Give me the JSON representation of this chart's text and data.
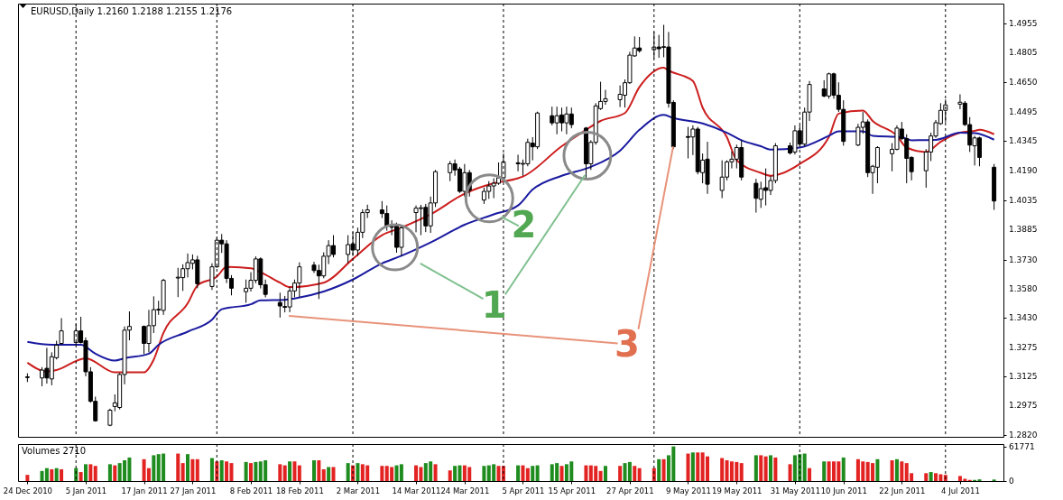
{
  "chart_data": [
    {
      "type": "candlestick",
      "title": "EURUSD,Daily  1.2160 1.2188 1.2155 1.2176",
      "tick_labels": "y",
      "x": [
        "2010-12-24",
        "2010-12-27",
        "2010-12-28",
        "2010-12-29",
        "2010-12-30",
        "2010-12-31",
        "2011-01-03",
        "2011-01-04",
        "2011-01-05",
        "2011-01-06",
        "2011-01-07",
        "2011-01-10",
        "2011-01-11",
        "2011-01-12",
        "2011-01-13",
        "2011-01-14",
        "2011-01-17",
        "2011-01-18",
        "2011-01-19",
        "2011-01-20",
        "2011-01-21",
        "2011-01-24",
        "2011-01-25",
        "2011-01-26",
        "2011-01-27",
        "2011-01-28",
        "2011-01-31",
        "2011-02-01",
        "2011-02-02",
        "2011-02-03",
        "2011-02-04",
        "2011-02-07",
        "2011-02-08",
        "2011-02-09",
        "2011-02-10",
        "2011-02-11",
        "2011-02-14",
        "2011-02-15",
        "2011-02-16",
        "2011-02-17",
        "2011-02-18",
        "2011-02-21",
        "2011-02-22",
        "2011-02-23",
        "2011-02-24",
        "2011-02-25",
        "2011-02-28",
        "2011-03-01",
        "2011-03-02",
        "2011-03-03",
        "2011-03-04",
        "2011-03-07",
        "2011-03-08",
        "2011-03-09",
        "2011-03-10",
        "2011-03-11",
        "2011-03-14",
        "2011-03-15",
        "2011-03-16",
        "2011-03-17",
        "2011-03-18",
        "2011-03-21",
        "2011-03-22",
        "2011-03-23",
        "2011-03-24",
        "2011-03-25",
        "2011-03-28",
        "2011-03-29",
        "2011-03-30",
        "2011-03-31",
        "2011-04-01",
        "2011-04-04",
        "2011-04-05",
        "2011-04-06",
        "2011-04-07",
        "2011-04-08",
        "2011-04-11",
        "2011-04-12",
        "2011-04-13",
        "2011-04-14",
        "2011-04-15",
        "2011-04-18",
        "2011-04-19",
        "2011-04-20",
        "2011-04-21",
        "2011-04-22",
        "2011-04-25",
        "2011-04-26",
        "2011-04-27",
        "2011-04-28",
        "2011-04-29",
        "2011-05-02",
        "2011-05-03",
        "2011-05-04",
        "2011-05-05",
        "2011-05-06",
        "2011-05-09",
        "2011-05-10",
        "2011-05-11",
        "2011-05-12",
        "2011-05-13",
        "2011-05-16",
        "2011-05-17",
        "2011-05-18",
        "2011-05-19",
        "2011-05-20",
        "2011-05-23",
        "2011-05-24",
        "2011-05-25",
        "2011-05-26",
        "2011-05-27",
        "2011-05-30",
        "2011-05-31",
        "2011-06-01",
        "2011-06-02",
        "2011-06-03",
        "2011-06-06",
        "2011-06-07",
        "2011-06-08",
        "2011-06-09",
        "2011-06-10",
        "2011-06-13",
        "2011-06-14",
        "2011-06-15",
        "2011-06-16",
        "2011-06-17",
        "2011-06-20",
        "2011-06-21",
        "2011-06-22",
        "2011-06-23",
        "2011-06-24",
        "2011-06-27",
        "2011-06-28",
        "2011-06-29",
        "2011-06-30",
        "2011-07-01",
        "2011-07-04",
        "2011-07-05",
        "2011-07-06",
        "2011-07-07",
        "2011-07-08",
        "2011-07-11"
      ],
      "ohlc": [
        [
          1.3118,
          1.314,
          1.3095,
          1.3122
        ],
        [
          1.3116,
          1.3172,
          1.3073,
          1.3157
        ],
        [
          1.3166,
          1.3272,
          1.3087,
          1.3116
        ],
        [
          1.3111,
          1.3249,
          1.3078,
          1.3226
        ],
        [
          1.3221,
          1.3309,
          1.3212,
          1.3286
        ],
        [
          1.3295,
          1.3426,
          1.3288,
          1.336
        ],
        [
          1.33,
          1.3395,
          1.3288,
          1.336
        ],
        [
          1.336,
          1.3433,
          1.3295,
          1.33
        ],
        [
          1.3309,
          1.3326,
          1.3125,
          1.3148
        ],
        [
          1.3148,
          1.3172,
          1.2988,
          1.2995
        ],
        [
          1.2995,
          1.3019,
          1.289,
          1.2894
        ],
        [
          1.2871,
          1.2957,
          1.2866,
          1.2949
        ],
        [
          1.2968,
          1.3031,
          1.2943,
          1.2987
        ],
        [
          1.2963,
          1.3142,
          1.2953,
          1.3134
        ],
        [
          1.3134,
          1.3383,
          1.3083,
          1.3364
        ],
        [
          1.3364,
          1.3461,
          1.3311,
          1.3383
        ],
        [
          1.3383,
          1.3388,
          1.324,
          1.3295
        ],
        [
          1.3295,
          1.3469,
          1.3249,
          1.3387
        ],
        [
          1.3387,
          1.3539,
          1.3349,
          1.347
        ],
        [
          1.3468,
          1.3516,
          1.3443,
          1.3472
        ],
        [
          1.3466,
          1.363,
          1.3443,
          1.3622
        ],
        [
          1.3634,
          1.3687,
          1.3535,
          1.3638
        ],
        [
          1.3636,
          1.3705,
          1.3567,
          1.3682
        ],
        [
          1.3682,
          1.3761,
          1.3637,
          1.3714
        ],
        [
          1.371,
          1.3756,
          1.3679,
          1.3728
        ],
        [
          1.3728,
          1.3749,
          1.3581,
          1.3604
        ],
        [
          1.359,
          1.371,
          1.3572,
          1.3692
        ],
        [
          1.3692,
          1.3844,
          1.3687,
          1.383
        ],
        [
          1.383,
          1.3862,
          1.3764,
          1.3811
        ],
        [
          1.3811,
          1.383,
          1.3608,
          1.3632
        ],
        [
          1.3632,
          1.3649,
          1.3544,
          1.3581
        ],
        [
          1.3563,
          1.3626,
          1.3506,
          1.3581
        ],
        [
          1.3581,
          1.3664,
          1.3564,
          1.3622
        ],
        [
          1.3622,
          1.3746,
          1.3607,
          1.3733
        ],
        [
          1.3733,
          1.3741,
          1.358,
          1.3599
        ],
        [
          1.3599,
          1.3626,
          1.3534,
          1.3549
        ],
        [
          1.3507,
          1.3558,
          1.3429,
          1.3489
        ],
        [
          1.3486,
          1.3541,
          1.3456,
          1.3482
        ],
        [
          1.3484,
          1.3587,
          1.3457,
          1.3567
        ],
        [
          1.3567,
          1.3626,
          1.3534,
          1.3608
        ],
        [
          1.3608,
          1.3715,
          1.3535,
          1.3692
        ],
        [
          1.3701,
          1.3718,
          1.366,
          1.3673
        ],
        [
          1.3673,
          1.3703,
          1.3525,
          1.3645
        ],
        [
          1.3645,
          1.3767,
          1.3633,
          1.3747
        ],
        [
          1.3747,
          1.383,
          1.3706,
          1.3802
        ],
        [
          1.3802,
          1.3856,
          1.3741,
          1.3756
        ],
        [
          1.3756,
          1.3856,
          1.371,
          1.3807
        ],
        [
          1.3811,
          1.3872,
          1.3749,
          1.3779
        ],
        [
          1.3779,
          1.3895,
          1.3749,
          1.3871
        ],
        [
          1.3871,
          1.399,
          1.3841,
          1.3973
        ],
        [
          1.3973,
          1.4014,
          1.3945,
          1.3987
        ],
        [
          1.3987,
          1.4033,
          1.3945,
          1.3968
        ],
        [
          1.3968,
          1.401,
          1.3879,
          1.3904
        ],
        [
          1.3901,
          1.3933,
          1.3856,
          1.3897
        ],
        [
          1.3904,
          1.3921,
          1.3765,
          1.3793
        ],
        [
          1.3793,
          1.391,
          1.3749,
          1.3894
        ],
        [
          1.3973,
          1.401,
          1.3871,
          1.3996
        ],
        [
          1.3994,
          1.4013,
          1.3856,
          1.3998
        ],
        [
          1.4,
          1.4018,
          1.3872,
          1.3904
        ],
        [
          1.3904,
          1.4056,
          1.3868,
          1.4023
        ],
        [
          1.4023,
          1.4194,
          1.4002,
          1.4185
        ],
        [
          1.418,
          1.424,
          1.4136,
          1.4226
        ],
        [
          1.4226,
          1.4248,
          1.4164,
          1.4194
        ],
        [
          1.4199,
          1.421,
          1.4075,
          1.4083
        ],
        [
          1.4083,
          1.4225,
          1.4056,
          1.418
        ],
        [
          1.418,
          1.4194,
          1.4056,
          1.4088
        ],
        [
          1.4038,
          1.4102,
          1.4018,
          1.4083
        ],
        [
          1.4083,
          1.4136,
          1.4044,
          1.4111
        ],
        [
          1.4111,
          1.4151,
          1.4048,
          1.4125
        ],
        [
          1.4125,
          1.4233,
          1.4117,
          1.4153
        ],
        [
          1.4153,
          1.4279,
          1.414,
          1.4236
        ],
        [
          1.4231,
          1.4273,
          1.4187,
          1.4226
        ],
        [
          1.4224,
          1.4248,
          1.4164,
          1.4228
        ],
        [
          1.4226,
          1.4356,
          1.4213,
          1.4337
        ],
        [
          1.4333,
          1.4364,
          1.4244,
          1.4314
        ],
        [
          1.4314,
          1.4496,
          1.4302,
          1.4489
        ],
        [
          1.4475,
          1.4522,
          1.4425,
          1.4438
        ],
        [
          1.4438,
          1.4522,
          1.4379,
          1.4475
        ],
        [
          1.4479,
          1.4517,
          1.4394,
          1.4438
        ],
        [
          1.4438,
          1.4522,
          1.4379,
          1.4484
        ],
        [
          1.4484,
          1.4517,
          1.441,
          1.4429
        ],
        [
          1.4411,
          1.4417,
          1.4153,
          1.4226
        ],
        [
          1.4226,
          1.4348,
          1.4194,
          1.4337
        ],
        [
          1.4337,
          1.454,
          1.4325,
          1.4526
        ],
        [
          1.4512,
          1.4651,
          1.4505,
          1.4549
        ],
        [
          1.4549,
          1.4609,
          1.4532,
          1.4563
        ],
        [
          1.4558,
          1.4632,
          1.452,
          1.4586
        ],
        [
          1.4581,
          1.4663,
          1.4517,
          1.4646
        ],
        [
          1.4646,
          1.4806,
          1.464,
          1.4789
        ],
        [
          1.4785,
          1.4886,
          1.478,
          1.4826
        ],
        [
          1.4826,
          1.4883,
          1.4802,
          1.4812
        ],
        [
          1.4817,
          1.4909,
          1.4771,
          1.4831
        ],
        [
          1.4831,
          1.4894,
          1.4775,
          1.4822
        ],
        [
          1.4829,
          1.4946,
          1.4778,
          1.4833
        ],
        [
          1.4831,
          1.4909,
          1.4517,
          1.454
        ],
        [
          1.4544,
          1.4555,
          1.4302,
          1.4314
        ],
        [
          1.4367,
          1.4417,
          1.4254,
          1.4363
        ],
        [
          1.4365,
          1.4425,
          1.4271,
          1.4406
        ],
        [
          1.4406,
          1.4417,
          1.4171,
          1.4185
        ],
        [
          1.418,
          1.4279,
          1.4125,
          1.4245
        ],
        [
          1.425,
          1.434,
          1.407,
          1.412
        ],
        [
          1.4088,
          1.4244,
          1.4048,
          1.4157
        ],
        [
          1.4157,
          1.4244,
          1.414,
          1.4236
        ],
        [
          1.4236,
          1.429,
          1.4202,
          1.425
        ],
        [
          1.425,
          1.4325,
          1.4202,
          1.431
        ],
        [
          1.431,
          1.4348,
          1.414,
          1.4157
        ],
        [
          1.4125,
          1.4148,
          1.3973,
          1.4047
        ],
        [
          1.4042,
          1.4133,
          1.3997,
          1.4097
        ],
        [
          1.4102,
          1.4202,
          1.401,
          1.4088
        ],
        [
          1.4088,
          1.4164,
          1.4064,
          1.4139
        ],
        [
          1.4139,
          1.4333,
          1.4125,
          1.4319
        ],
        [
          1.4319,
          1.4336,
          1.4274,
          1.4282
        ],
        [
          1.4287,
          1.4425,
          1.4274,
          1.4397
        ],
        [
          1.4397,
          1.4425,
          1.432,
          1.4328
        ],
        [
          1.4328,
          1.4517,
          1.4317,
          1.4494
        ],
        [
          1.4494,
          1.4655,
          1.4448,
          1.4637
        ],
        [
          1.4614,
          1.4659,
          1.4571,
          1.4577
        ],
        [
          1.4577,
          1.4698,
          1.4563,
          1.4692
        ],
        [
          1.4692,
          1.4698,
          1.4563,
          1.4581
        ],
        [
          1.4581,
          1.4648,
          1.4495,
          1.4508
        ],
        [
          1.4508,
          1.4555,
          1.432,
          1.4342
        ],
        [
          1.4323,
          1.4433,
          1.4317,
          1.4415
        ],
        [
          1.4415,
          1.4494,
          1.4382,
          1.4443
        ],
        [
          1.4443,
          1.4456,
          1.4157,
          1.418
        ],
        [
          1.418,
          1.422,
          1.407,
          1.4213
        ],
        [
          1.4208,
          1.4317,
          1.4125,
          1.431
        ],
        [
          1.4278,
          1.4333,
          1.4187,
          1.4301
        ],
        [
          1.4301,
          1.4425,
          1.4296,
          1.4411
        ],
        [
          1.4406,
          1.4443,
          1.435,
          1.4356
        ],
        [
          1.4356,
          1.4379,
          1.4125,
          1.4254
        ],
        [
          1.4259,
          1.4264,
          1.414,
          1.4185
        ],
        [
          1.419,
          1.4302,
          1.4102,
          1.4287
        ],
        [
          1.4287,
          1.4387,
          1.424,
          1.437
        ],
        [
          1.437,
          1.4453,
          1.436,
          1.4439
        ],
        [
          1.4434,
          1.454,
          1.4428,
          1.4503
        ],
        [
          1.4503,
          1.4559,
          1.444,
          1.4531
        ],
        [
          1.4535,
          1.4586,
          1.4509,
          1.4545
        ],
        [
          1.454,
          1.4551,
          1.4422,
          1.4429
        ],
        [
          1.4429,
          1.4468,
          1.4287,
          1.4323
        ],
        [
          1.4319,
          1.4371,
          1.4217,
          1.436
        ],
        [
          1.436,
          1.4366,
          1.4213,
          1.4259
        ],
        [
          1.4208,
          1.4225,
          1.3987,
          1.4033
        ]
      ],
      "series": [
        {
          "type": "line",
          "color": "#cc1e1e",
          "x": [
            "2010-12-24",
            "2010-12-28",
            "2010-12-30",
            "2011-01-05",
            "2011-01-11",
            "2011-01-17",
            "2011-01-19",
            "2011-01-21",
            "2011-01-26",
            "2011-01-28",
            "2011-02-01",
            "2011-02-03",
            "2011-02-08",
            "2011-02-10",
            "2011-02-14",
            "2011-02-16",
            "2011-02-23",
            "2011-03-01",
            "2011-03-07",
            "2011-03-11",
            "2011-03-17",
            "2011-03-24",
            "2011-03-30",
            "2011-04-04",
            "2011-04-05",
            "2011-04-13",
            "2011-04-18",
            "2011-04-21",
            "2011-04-26",
            "2011-04-29",
            "2011-05-04",
            "2011-05-05",
            "2011-05-10",
            "2011-05-12",
            "2011-05-17",
            "2011-05-19",
            "2011-05-24",
            "2011-05-26",
            "2011-06-01",
            "2011-06-07",
            "2011-06-09",
            "2011-06-14",
            "2011-06-16",
            "2011-06-21",
            "2011-06-23",
            "2011-06-27",
            "2011-06-30",
            "2011-07-04",
            "2011-07-07",
            "2011-07-08",
            "2011-07-11"
          ],
          "values": [
            1.3195,
            1.3149,
            1.3157,
            1.3218,
            1.3145,
            1.3145,
            1.3211,
            1.3349,
            1.3503,
            1.3595,
            1.3641,
            1.3691,
            1.3684,
            1.3664,
            1.361,
            1.3587,
            1.361,
            1.3733,
            1.3856,
            1.3895,
            1.3964,
            1.4071,
            1.4125,
            1.4151,
            1.416,
            1.4317,
            1.4402,
            1.4448,
            1.4489,
            1.4624,
            1.4724,
            1.4709,
            1.4655,
            1.4517,
            1.4364,
            1.4245,
            1.4179,
            1.4164,
            1.4225,
            1.4365,
            1.4486,
            1.4502,
            1.4448,
            1.4371,
            1.431,
            1.4287,
            1.434,
            1.4387,
            1.4397,
            1.4402,
            1.4379
          ]
        },
        {
          "type": "line",
          "color": "#1a1aa0",
          "x": [
            "2010-12-24",
            "2010-12-29",
            "2011-01-04",
            "2011-01-07",
            "2011-01-11",
            "2011-01-13",
            "2011-01-18",
            "2011-01-20",
            "2011-01-26",
            "2011-01-31",
            "2011-02-02",
            "2011-02-08",
            "2011-02-10",
            "2011-02-15",
            "2011-02-17",
            "2011-02-23",
            "2011-03-01",
            "2011-03-07",
            "2011-03-11",
            "2011-03-17",
            "2011-03-24",
            "2011-03-30",
            "2011-04-04",
            "2011-04-07",
            "2011-04-13",
            "2011-04-19",
            "2011-04-25",
            "2011-04-29",
            "2011-05-04",
            "2011-05-06",
            "2011-05-12",
            "2011-05-17",
            "2011-05-20",
            "2011-05-24",
            "2011-05-26",
            "2011-06-01",
            "2011-06-07",
            "2011-06-09",
            "2011-06-14",
            "2011-06-16",
            "2011-06-22",
            "2011-06-24",
            "2011-06-29",
            "2011-07-04",
            "2011-07-07",
            "2011-07-11"
          ],
          "values": [
            1.3303,
            1.3288,
            1.3288,
            1.3242,
            1.3206,
            1.3218,
            1.3242,
            1.3288,
            1.3356,
            1.3418,
            1.3472,
            1.3498,
            1.3518,
            1.3521,
            1.3528,
            1.3564,
            1.3626,
            1.371,
            1.3749,
            1.3818,
            1.391,
            1.3964,
            1.401,
            1.4092,
            1.4164,
            1.421,
            1.4294,
            1.4402,
            1.4479,
            1.4463,
            1.4435,
            1.4387,
            1.4348,
            1.4317,
            1.4299,
            1.431,
            1.4371,
            1.4394,
            1.4394,
            1.4371,
            1.4364,
            1.4348,
            1.435,
            1.4387,
            1.4385,
            1.4351
          ]
        }
      ],
      "xlim": [
        "2010-12-23",
        "2011-07-12"
      ],
      "ylim": [
        1.2811,
        1.5056
      ],
      "yticks": [
        1.4955,
        1.4805,
        {
          "value": 1.465,
          "label": "1.4650"
        },
        1.4495,
        1.4345,
        {
          "value": 1.419,
          "label": "1.4190"
        },
        1.4035,
        1.3885,
        {
          "value": 1.373,
          "label": "1.3730"
        },
        {
          "value": 1.358,
          "label": "1.3580"
        },
        {
          "value": 1.343,
          "label": "1.3430"
        },
        1.3275,
        1.3125,
        1.2975,
        {
          "value": 1.282,
          "label": "1.2820"
        }
      ],
      "ref_lines": [
        {
          "axis": "x",
          "value": "2011-01-03",
          "color": "#000000",
          "line_style": "dashed"
        },
        {
          "axis": "x",
          "value": "2011-02-01",
          "color": "#000000",
          "line_style": "dashed"
        },
        {
          "axis": "x",
          "value": "2011-03-01",
          "color": "#000000",
          "line_style": "dashed"
        },
        {
          "axis": "x",
          "value": "2011-04-01",
          "color": "#000000",
          "line_style": "dashed"
        },
        {
          "axis": "x",
          "value": "2011-05-02",
          "color": "#000000",
          "line_style": "dashed"
        },
        {
          "axis": "x",
          "value": "2011-06-01",
          "color": "#000000",
          "line_style": "dashed"
        },
        {
          "axis": "x",
          "value": "2011-07-01",
          "color": "#000000",
          "line_style": "dashed"
        }
      ],
      "annotations": [
        {
          "text": "1",
          "x": "2011-04-18",
          "y": 1.4153
        },
        {
          "text": "2",
          "x": "2011-04-01",
          "y": 1.3936
        },
        {
          "text": "3",
          "x": "2011-05-06",
          "y": 1.4302
        }
      ]
    },
    {
      "type": "bar",
      "title": "Volumes 2710",
      "x": [
        "2010-12-24",
        "2010-12-27",
        "2010-12-28",
        "2010-12-29",
        "2010-12-30",
        "2010-12-31",
        "2011-01-03",
        "2011-01-04",
        "2011-01-05",
        "2011-01-06",
        "2011-01-07",
        "2011-01-10",
        "2011-01-11",
        "2011-01-12",
        "2011-01-13",
        "2011-01-14",
        "2011-01-17",
        "2011-01-18",
        "2011-01-19",
        "2011-01-20",
        "2011-01-21",
        "2011-01-24",
        "2011-01-25",
        "2011-01-26",
        "2011-01-27",
        "2011-01-28",
        "2011-01-31",
        "2011-02-01",
        "2011-02-02",
        "2011-02-03",
        "2011-02-04",
        "2011-02-07",
        "2011-02-08",
        "2011-02-09",
        "2011-02-10",
        "2011-02-11",
        "2011-02-14",
        "2011-02-15",
        "2011-02-16",
        "2011-02-17",
        "2011-02-18",
        "2011-02-21",
        "2011-02-22",
        "2011-02-23",
        "2011-02-24",
        "2011-02-25",
        "2011-02-28",
        "2011-03-01",
        "2011-03-02",
        "2011-03-03",
        "2011-03-04",
        "2011-03-07",
        "2011-03-08",
        "2011-03-09",
        "2011-03-10",
        "2011-03-11",
        "2011-03-14",
        "2011-03-15",
        "2011-03-16",
        "2011-03-17",
        "2011-03-18",
        "2011-03-21",
        "2011-03-22",
        "2011-03-23",
        "2011-03-24",
        "2011-03-25",
        "2011-03-28",
        "2011-03-29",
        "2011-03-30",
        "2011-03-31",
        "2011-04-01",
        "2011-04-04",
        "2011-04-05",
        "2011-04-06",
        "2011-04-07",
        "2011-04-08",
        "2011-04-11",
        "2011-04-12",
        "2011-04-13",
        "2011-04-14",
        "2011-04-15",
        "2011-04-18",
        "2011-04-19",
        "2011-04-20",
        "2011-04-21",
        "2011-04-22",
        "2011-04-25",
        "2011-04-26",
        "2011-04-27",
        "2011-04-28",
        "2011-04-29",
        "2011-05-02",
        "2011-05-03",
        "2011-05-04",
        "2011-05-05",
        "2011-05-06",
        "2011-05-09",
        "2011-05-10",
        "2011-05-11",
        "2011-05-12",
        "2011-05-13",
        "2011-05-16",
        "2011-05-17",
        "2011-05-18",
        "2011-05-19",
        "2011-05-20",
        "2011-05-23",
        "2011-05-24",
        "2011-05-25",
        "2011-05-26",
        "2011-05-27",
        "2011-05-30",
        "2011-05-31",
        "2011-06-01",
        "2011-06-02",
        "2011-06-03",
        "2011-06-06",
        "2011-06-07",
        "2011-06-08",
        "2011-06-09",
        "2011-06-10",
        "2011-06-13",
        "2011-06-14",
        "2011-06-15",
        "2011-06-16",
        "2011-06-17",
        "2011-06-20",
        "2011-06-21",
        "2011-06-22",
        "2011-06-23",
        "2011-06-24",
        "2011-06-27",
        "2011-06-28",
        "2011-06-29",
        "2011-06-30",
        "2011-07-01",
        "2011-07-04",
        "2011-07-05",
        "2011-07-06",
        "2011-07-07",
        "2011-07-08",
        "2011-07-11"
      ],
      "values": [
        11000,
        18000,
        23000,
        21000,
        23000,
        21000,
        23000,
        16000,
        30000,
        30000,
        27000,
        30000,
        28000,
        32000,
        37000,
        42000,
        39000,
        23000,
        46000,
        48000,
        49000,
        49000,
        32000,
        48000,
        39000,
        39000,
        41000,
        35000,
        37000,
        35000,
        32000,
        34000,
        32000,
        34000,
        35000,
        37000,
        30000,
        28000,
        35000,
        35000,
        28000,
        37000,
        37000,
        21000,
        25000,
        25000,
        32000,
        28000,
        32000,
        30000,
        28000,
        27000,
        27000,
        25000,
        28000,
        30000,
        28000,
        25000,
        32000,
        35000,
        30000,
        19000,
        27000,
        28000,
        28000,
        25000,
        27000,
        28000,
        30000,
        27000,
        27000,
        28000,
        28000,
        23000,
        27000,
        28000,
        30000,
        32000,
        27000,
        30000,
        35000,
        28000,
        28000,
        27000,
        18000,
        27000,
        27000,
        32000,
        34000,
        27000,
        23000,
        23000,
        39000,
        39000,
        46000,
        61771,
        49000,
        51000,
        51000,
        51000,
        44000,
        41000,
        37000,
        35000,
        34000,
        32000,
        46000,
        46000,
        44000,
        46000,
        42000,
        30000,
        46000,
        48000,
        49000,
        23000,
        35000,
        35000,
        35000,
        35000,
        42000,
        39000,
        35000,
        34000,
        32000,
        39000,
        37000,
        39000,
        35000,
        32000,
        14000,
        14000,
        16000,
        14000,
        12000,
        11000,
        9000,
        4000,
        2000,
        2000,
        3000,
        2710
      ],
      "colors": [
        "#e32222",
        "#1e8c1e",
        "#1e8c1e",
        "#e32222",
        "#1e8c1e",
        "#e32222",
        "#1e8c1e",
        "#e32222",
        "#1e8c1e",
        "#e32222",
        "#e32222",
        "#1e8c1e",
        "#e32222",
        "#1e8c1e",
        "#1e8c1e",
        "#1e8c1e",
        "#e32222",
        "#e32222",
        "#1e8c1e",
        "#1e8c1e",
        "#1e8c1e",
        "#e32222",
        "#e32222",
        "#1e8c1e",
        "#e32222",
        "#e32222",
        "#1e8c1e",
        "#e32222",
        "#1e8c1e",
        "#e32222",
        "#e32222",
        "#1e8c1e",
        "#e32222",
        "#1e8c1e",
        "#1e8c1e",
        "#1e8c1e",
        "#e32222",
        "#e32222",
        "#1e8c1e",
        "#e32222",
        "#e32222",
        "#1e8c1e",
        "#e32222",
        "#e32222",
        "#1e8c1e",
        "#e32222",
        "#1e8c1e",
        "#e32222",
        "#1e8c1e",
        "#e32222",
        "#e32222",
        "#e32222",
        "#e32222",
        "#e32222",
        "#1e8c1e",
        "#1e8c1e",
        "#e32222",
        "#e32222",
        "#1e8c1e",
        "#1e8c1e",
        "#e32222",
        "#e32222",
        "#1e8c1e",
        "#1e8c1e",
        "#e32222",
        "#e32222",
        "#1e8c1e",
        "#1e8c1e",
        "#1e8c1e",
        "#e32222",
        "#e32222",
        "#1e8c1e",
        "#e32222",
        "#e32222",
        "#1e8c1e",
        "#1e8c1e",
        "#1e8c1e",
        "#1e8c1e",
        "#e32222",
        "#1e8c1e",
        "#1e8c1e",
        "#e32222",
        "#e32222",
        "#e32222",
        "#e32222",
        "#1e8c1e",
        "#e32222",
        "#1e8c1e",
        "#1e8c1e",
        "#e32222",
        "#e32222",
        "#e32222",
        "#1e8c1e",
        "#e32222",
        "#1e8c1e",
        "#1e8c1e",
        "#e32222",
        "#1e8c1e",
        "#e32222",
        "#e32222",
        "#e32222",
        "#e32222",
        "#e32222",
        "#e32222",
        "#e32222",
        "#e32222",
        "#1e8c1e",
        "#e32222",
        "#e32222",
        "#1e8c1e",
        "#e32222",
        "#e32222",
        "#1e8c1e",
        "#1e8c1e",
        "#1e8c1e",
        "#e32222",
        "#1e8c1e",
        "#e32222",
        "#e32222",
        "#e32222",
        "#1e8c1e",
        "#e32222",
        "#e32222",
        "#e32222",
        "#e32222",
        "#1e8c1e",
        "#e32222",
        "#1e8c1e",
        "#e32222",
        "#e32222",
        "#e32222",
        "#e32222",
        "#1e8c1e",
        "#e32222",
        "#e32222",
        "#e32222",
        "#e32222",
        "#e32222",
        "#e32222",
        "#1e8c1e",
        "#1e8c1e",
        "#1e8c1e"
      ],
      "xlim": [
        "2010-12-23",
        "2011-07-12"
      ],
      "ylim": [
        0,
        66000
      ],
      "yticks": [
        0,
        61771
      ],
      "xticks": [
        {
          "value": "2010-12-24",
          "label": "24 Dec 2010"
        },
        {
          "value": "2011-01-05",
          "label": "5 Jan 2011"
        },
        {
          "value": "2011-01-17",
          "label": "17 Jan 2011"
        },
        {
          "value": "2011-01-27",
          "label": "27 Jan 2011"
        },
        {
          "value": "2011-02-08",
          "label": "8 Feb 2011"
        },
        {
          "value": "2011-02-18",
          "label": "18 Feb 2011"
        },
        {
          "value": "2011-03-02",
          "label": "2 Mar 2011"
        },
        {
          "value": "2011-03-14",
          "label": "14 Mar 2011"
        },
        {
          "value": "2011-03-24",
          "label": "24 Mar 2011"
        },
        {
          "value": "2011-04-05",
          "label": "5 Apr 2011"
        },
        {
          "value": "2011-04-15",
          "label": "15 Apr 2011"
        },
        {
          "value": "2011-04-27",
          "label": "27 Apr 2011"
        },
        {
          "value": "2011-05-09",
          "label": "9 May 2011"
        },
        {
          "value": "2011-05-19",
          "label": "19 May 2011"
        },
        {
          "value": "2011-05-31",
          "label": "31 May 2011"
        },
        {
          "value": "2011-06-10",
          "label": "10 Jun 2011"
        },
        {
          "value": "2011-06-22",
          "label": "22 Jun 2011"
        },
        {
          "value": "2011-07-04",
          "label": "4 Jul 2011"
        }
      ],
      "ref_lines": [
        {
          "axis": "x",
          "value": "2011-01-03",
          "color": "#000000",
          "line_style": "dashed"
        },
        {
          "axis": "x",
          "value": "2011-02-01",
          "color": "#000000",
          "line_style": "dashed"
        },
        {
          "axis": "x",
          "value": "2011-03-01",
          "color": "#000000",
          "line_style": "dashed"
        },
        {
          "axis": "x",
          "value": "2011-04-01",
          "color": "#000000",
          "line_style": "dashed"
        },
        {
          "axis": "x",
          "value": "2011-05-02",
          "color": "#000000",
          "line_style": "dashed"
        },
        {
          "axis": "x",
          "value": "2011-06-01",
          "color": "#000000",
          "line_style": "dashed"
        },
        {
          "axis": "x",
          "value": "2011-07-01",
          "color": "#000000",
          "line_style": "dashed"
        }
      ]
    }
  ]
}
